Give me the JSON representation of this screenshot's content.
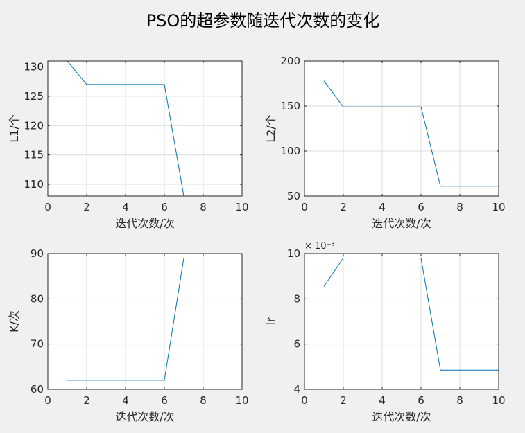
{
  "figure": {
    "title": "PSO的超参数随迭代次数的变化",
    "background": "#f0f0f0",
    "axes_background": "#ffffff",
    "line_color": "#0072bd",
    "grid_color": "#dcdcdc"
  },
  "chart_data": [
    {
      "type": "line",
      "title": "",
      "xlabel": "迭代次数/次",
      "ylabel": "L1/个",
      "xlim": [
        0,
        10
      ],
      "ylim": [
        108,
        131
      ],
      "xticks": [
        0,
        2,
        4,
        6,
        8,
        10
      ],
      "yticks": [
        110,
        115,
        120,
        125,
        130
      ],
      "grid": true,
      "exponent_label": "",
      "series": [
        {
          "x": [
            1,
            2,
            3,
            4,
            5,
            6,
            7,
            8,
            9,
            10
          ],
          "y": [
            131,
            127,
            127,
            127,
            127,
            127,
            108,
            108,
            108,
            108
          ]
        }
      ]
    },
    {
      "type": "line",
      "title": "",
      "xlabel": "迭代次数/次",
      "ylabel": "L2/个",
      "xlim": [
        0,
        10
      ],
      "ylim": [
        50,
        200
      ],
      "xticks": [
        0,
        2,
        4,
        6,
        8,
        10
      ],
      "yticks": [
        50,
        100,
        150,
        200
      ],
      "grid": true,
      "exponent_label": "",
      "series": [
        {
          "x": [
            1,
            2,
            3,
            4,
            5,
            6,
            7,
            8,
            9,
            10
          ],
          "y": [
            178,
            149,
            149,
            149,
            149,
            149,
            61,
            61,
            61,
            61
          ]
        }
      ]
    },
    {
      "type": "line",
      "title": "",
      "xlabel": "迭代次数/次",
      "ylabel": "K/次",
      "xlim": [
        0,
        10
      ],
      "ylim": [
        60,
        90
      ],
      "xticks": [
        0,
        2,
        4,
        6,
        8,
        10
      ],
      "yticks": [
        60,
        70,
        80,
        90
      ],
      "grid": true,
      "exponent_label": "",
      "series": [
        {
          "x": [
            1,
            2,
            3,
            4,
            5,
            6,
            7,
            8,
            9,
            10
          ],
          "y": [
            62,
            62,
            62,
            62,
            62,
            62,
            89,
            89,
            89,
            89
          ]
        }
      ]
    },
    {
      "type": "line",
      "title": "",
      "xlabel": "迭代次数/次",
      "ylabel": "lr",
      "xlim": [
        0,
        10
      ],
      "ylim": [
        4,
        10
      ],
      "xticks": [
        0,
        2,
        4,
        6,
        8,
        10
      ],
      "yticks": [
        4,
        6,
        8,
        10
      ],
      "grid": true,
      "exponent_label": "× 10⁻³",
      "series": [
        {
          "x": [
            1,
            2,
            3,
            4,
            5,
            6,
            7,
            8,
            9,
            10
          ],
          "y": [
            8.55,
            9.8,
            9.8,
            9.8,
            9.8,
            9.8,
            4.85,
            4.85,
            4.85,
            4.85
          ]
        }
      ]
    }
  ]
}
